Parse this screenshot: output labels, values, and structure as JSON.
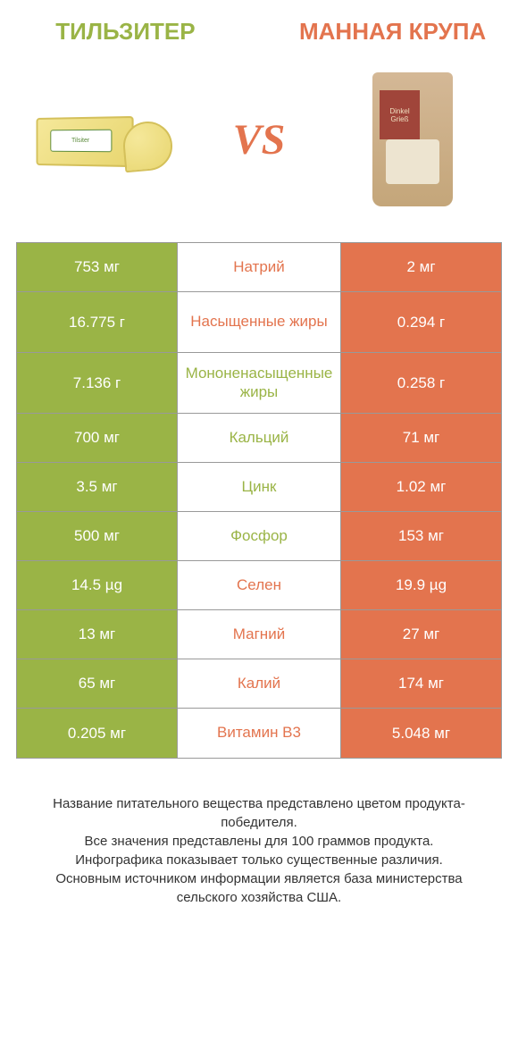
{
  "products": {
    "left": "ТИЛЬЗИТЕР",
    "right": "МАННАЯ КРУПА"
  },
  "vs": "VS",
  "cheese_label": "Tilsiter",
  "bag_label1": "Dinkel",
  "bag_label2": "Grieß",
  "colors": {
    "green": "#9ab446",
    "orange": "#e3744e"
  },
  "rows": [
    {
      "left": "753 мг",
      "mid": "Натрий",
      "right": "2 мг",
      "winner": "orange",
      "tall": false
    },
    {
      "left": "16.775 г",
      "mid": "Насыщенные жиры",
      "right": "0.294 г",
      "winner": "orange",
      "tall": true
    },
    {
      "left": "7.136 г",
      "mid": "Мононенасыщенные жиры",
      "right": "0.258 г",
      "winner": "green",
      "tall": true
    },
    {
      "left": "700 мг",
      "mid": "Кальций",
      "right": "71 мг",
      "winner": "green",
      "tall": false
    },
    {
      "left": "3.5 мг",
      "mid": "Цинк",
      "right": "1.02 мг",
      "winner": "green",
      "tall": false
    },
    {
      "left": "500 мг",
      "mid": "Фосфор",
      "right": "153 мг",
      "winner": "green",
      "tall": false
    },
    {
      "left": "14.5 µg",
      "mid": "Селен",
      "right": "19.9 µg",
      "winner": "orange",
      "tall": false
    },
    {
      "left": "13 мг",
      "mid": "Магний",
      "right": "27 мг",
      "winner": "orange",
      "tall": false
    },
    {
      "left": "65 мг",
      "mid": "Калий",
      "right": "174 мг",
      "winner": "orange",
      "tall": false
    },
    {
      "left": "0.205 мг",
      "mid": "Витамин B3",
      "right": "5.048 мг",
      "winner": "orange",
      "tall": false
    }
  ],
  "footer": [
    "Название питательного вещества представлено цветом продукта-победителя.",
    "Все значения представлены для 100 граммов продукта.",
    "Инфографика показывает только существенные различия.",
    "Основным источником информации является база министерства сельского хозяйства США."
  ]
}
